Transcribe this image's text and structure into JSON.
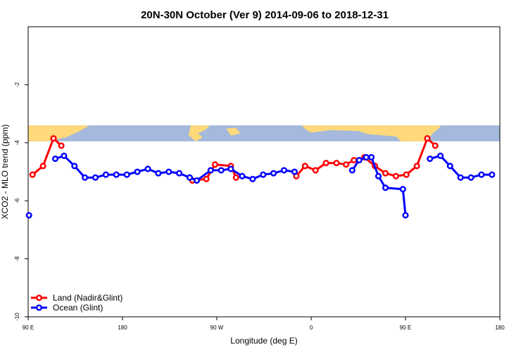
{
  "chart_data": {
    "type": "line",
    "title": "20N-30N October (Ver 9)   2014-09-06 to 2018-12-31",
    "xlabel": "Longitude (deg E)",
    "ylabel": "XCO2 - MLO trend (ppm)",
    "xlim": [
      90,
      360
    ],
    "ylim": [
      -10,
      0
    ],
    "x_ticks": [
      {
        "value": 90,
        "label": "90 E"
      },
      {
        "value": 144,
        "label": "180"
      },
      {
        "value": 198,
        "label": "90 W"
      },
      {
        "value": 252,
        "label": "0"
      },
      {
        "value": 306,
        "label": "90 E"
      },
      {
        "value": 360,
        "label": "180"
      }
    ],
    "y_ticks": [
      {
        "value": -10,
        "label": "-10"
      },
      {
        "value": -8,
        "label": "-8"
      },
      {
        "value": -6,
        "label": "-6"
      },
      {
        "value": -4,
        "label": "-4"
      },
      {
        "value": -2,
        "label": "-2"
      }
    ],
    "map_band": {
      "y_top": -3.4,
      "y_bottom": -3.95,
      "land_color": "#FFD97A",
      "ocean_color": "#A4B9DB"
    },
    "legend_position": "bottom-left",
    "grid": false,
    "series": [
      {
        "name": "Land (Nadir&Glint)",
        "color": "#FF0000",
        "segments": [
          [
            [
              92.5,
              -5.1
            ],
            [
              98.5,
              -4.8
            ],
            [
              104.5,
              -3.85
            ],
            [
              109,
              -4.1
            ]
          ],
          [
            [
              184,
              -5.3
            ],
            [
              192,
              -5.25
            ],
            [
              197,
              -4.75
            ],
            [
              206,
              -4.8
            ],
            [
              209,
              -5.2
            ]
          ],
          [
            [
              243.5,
              -5.15
            ],
            [
              248.5,
              -4.8
            ],
            [
              254.5,
              -4.95
            ],
            [
              260.5,
              -4.7
            ],
            [
              266.5,
              -4.7
            ],
            [
              272,
              -4.75
            ],
            [
              276.5,
              -4.6
            ],
            [
              282.5,
              -4.5
            ],
            [
              288.5,
              -4.8
            ],
            [
              294.5,
              -5.05
            ],
            [
              300.5,
              -5.15
            ],
            [
              306.5,
              -5.1
            ],
            [
              312.5,
              -4.8
            ],
            [
              318.5,
              -3.85
            ],
            [
              323,
              -4.1
            ]
          ]
        ]
      },
      {
        "name": "Ocean (Glint)",
        "color": "#0000FF",
        "segments": [
          [
            [
              90.5,
              -6.5
            ]
          ],
          [
            [
              105.5,
              -4.55
            ],
            [
              110.5,
              -4.45
            ],
            [
              116.5,
              -4.8
            ],
            [
              122.5,
              -5.2
            ],
            [
              128.5,
              -5.2
            ],
            [
              134.5,
              -5.1
            ],
            [
              140.5,
              -5.1
            ],
            [
              146.5,
              -5.1
            ],
            [
              152.5,
              -5.0
            ],
            [
              158.5,
              -4.9
            ],
            [
              164.5,
              -5.05
            ],
            [
              170.5,
              -5.0
            ],
            [
              176.5,
              -5.05
            ],
            [
              182.5,
              -5.2
            ],
            [
              186.5,
              -5.3
            ],
            [
              194.5,
              -4.95
            ],
            [
              200.5,
              -4.95
            ],
            [
              206,
              -4.9
            ],
            [
              212.5,
              -5.15
            ],
            [
              218.5,
              -5.25
            ],
            [
              224.5,
              -5.1
            ],
            [
              230.5,
              -5.05
            ],
            [
              236.5,
              -4.95
            ],
            [
              242.5,
              -5.0
            ]
          ],
          [
            [
              275.5,
              -4.95
            ],
            [
              279.5,
              -4.6
            ],
            [
              283.5,
              -4.5
            ],
            [
              286.5,
              -4.5
            ],
            [
              290.5,
              -5.15
            ],
            [
              294.5,
              -5.55
            ],
            [
              304.5,
              -5.6
            ],
            [
              306,
              -6.5
            ]
          ],
          [
            [
              320,
              -4.55
            ],
            [
              326,
              -4.45
            ],
            [
              331.5,
              -4.8
            ],
            [
              337.5,
              -5.2
            ],
            [
              343.5,
              -5.2
            ],
            [
              349.5,
              -5.1
            ],
            [
              355.5,
              -5.1
            ]
          ]
        ]
      }
    ]
  }
}
